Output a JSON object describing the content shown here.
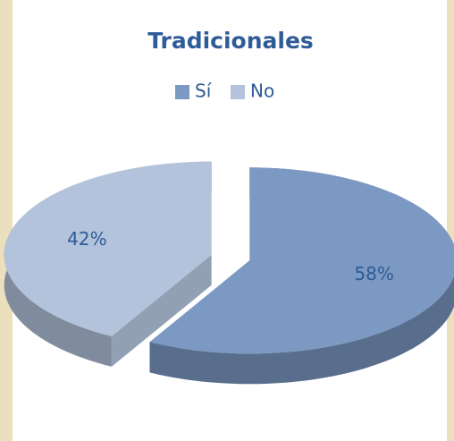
{
  "chart_data": {
    "type": "pie",
    "title": "Tradicionales",
    "categories": [
      "Sí",
      "No"
    ],
    "values": [
      58,
      42
    ],
    "value_labels": [
      "58%",
      "42%"
    ],
    "colors": [
      "#7b99c2",
      "#b2c3db"
    ],
    "legend": "top"
  }
}
